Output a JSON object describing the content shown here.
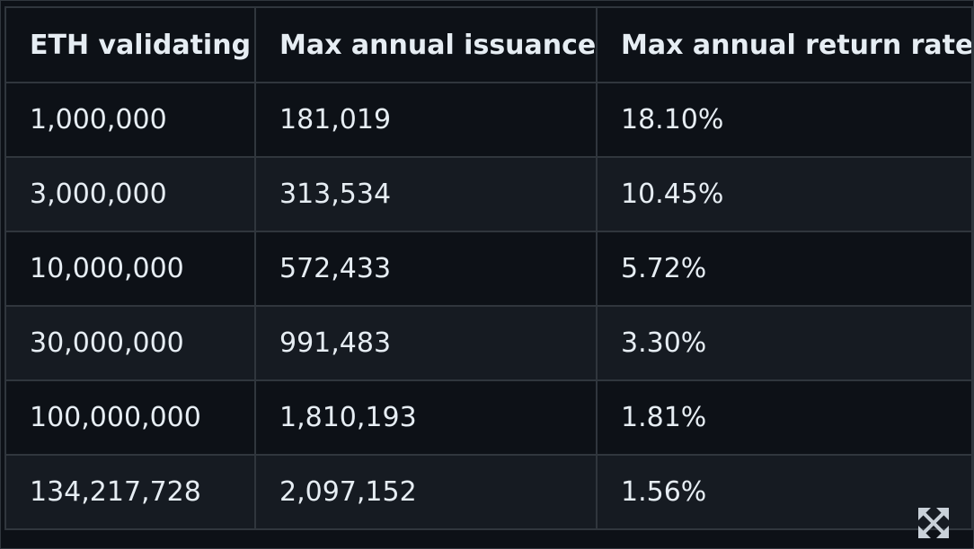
{
  "table": {
    "headers": [
      "ETH validating",
      "Max annual issuance",
      "Max annual return rate"
    ],
    "rows": [
      [
        "1,000,000",
        "181,019",
        "18.10%"
      ],
      [
        "3,000,000",
        "313,534",
        "10.45%"
      ],
      [
        "10,000,000",
        "572,433",
        "5.72%"
      ],
      [
        "30,000,000",
        "991,483",
        "3.30%"
      ],
      [
        "100,000,000",
        "1,810,193",
        "1.81%"
      ],
      [
        "134,217,728",
        "2,097,152",
        "1.56%"
      ]
    ]
  },
  "icons": {
    "expand": "expand-arrows-icon"
  },
  "colors": {
    "background": "#0d1117",
    "row_alt": "#161b22",
    "border": "#30363d",
    "text": "#e6edf3",
    "icon": "#c9d1d9"
  }
}
